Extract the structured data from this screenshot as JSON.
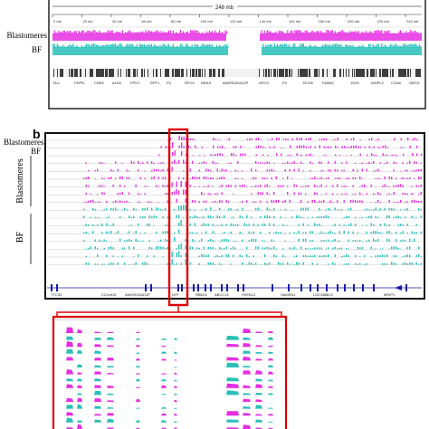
{
  "panel_a": {
    "chrom_length_label": "248 mb",
    "ruler_ticks": [
      "0 mb",
      "20 mb",
      "40 mb",
      "60 mb",
      "80 mb",
      "100 mb",
      "120 mb",
      "140 mb",
      "160 mb",
      "180 mb",
      "200 mb",
      "220 mb",
      "240 mb"
    ],
    "tracks": [
      {
        "label": "Blastomeres",
        "color": "#e62de3"
      },
      {
        "label": "BF",
        "color": "#28bfb8"
      }
    ],
    "genes": [
      "TIL1",
      "PDPN",
      "CNR2",
      "ALK6",
      "FPGT",
      "RPF1",
      "F5",
      "RPC5",
      "NRAS",
      "ANKRD20A12P",
      "APCS",
      "F5",
      "TE135",
      "FAM5C",
      "RGS",
      "WHPLZ",
      "COA6",
      "SMYD"
    ]
  },
  "panel_b": {
    "letter": "b",
    "top_labels": [
      "Blastomeres",
      "BF"
    ],
    "group_labels": [
      "Blastomeres",
      "BF"
    ],
    "colors": {
      "blastomeres": "#e62de3",
      "bf": "#28bfb8",
      "highlight": "#e00000",
      "gene": "#1a1aa8"
    },
    "genes": [
      "TTC33",
      "C21orf15",
      "ANKRD20A11P",
      "LIPI",
      "RBM11",
      "ABCC13",
      "HSPA13",
      "SAMSN1",
      "LOC388813",
      "MRIP1"
    ]
  }
}
